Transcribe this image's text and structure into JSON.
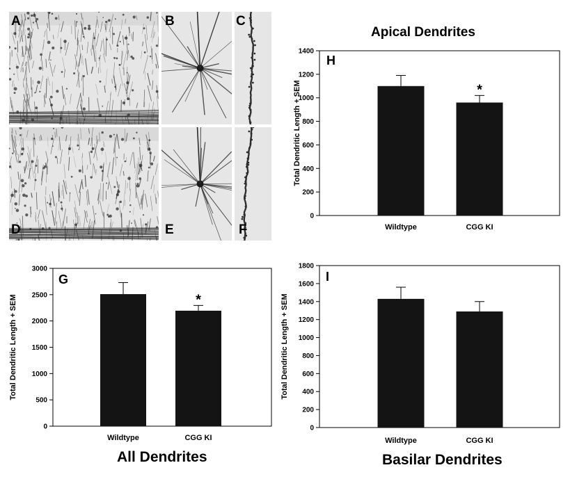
{
  "micrographs": [
    {
      "label": "A"
    },
    {
      "label": "B"
    },
    {
      "label": "C"
    },
    {
      "label": "D"
    },
    {
      "label": "E"
    },
    {
      "label": "F"
    }
  ],
  "colors": {
    "bar": "#141414",
    "axis": "#000000"
  },
  "chart_data": [
    {
      "id": "H",
      "type": "bar",
      "panel_label": "H",
      "title": "Apical Dendrites",
      "ylabel": "Total Dendritic Length + SEM",
      "categories": [
        "Wildtype",
        "CGG KI"
      ],
      "values": [
        1100,
        960
      ],
      "errors": [
        90,
        60
      ],
      "ylim": [
        0,
        1400
      ],
      "yticks": [
        0,
        200,
        400,
        600,
        800,
        1000,
        1200,
        1400
      ],
      "significance": [
        "",
        "*"
      ]
    },
    {
      "id": "G",
      "type": "bar",
      "panel_label": "G",
      "title": "All Dendrites",
      "ylabel": "Total Dendritic Length + SEM",
      "categories": [
        "Wildtype",
        "CGG KI"
      ],
      "values": [
        2510,
        2195
      ],
      "errors": [
        220,
        100
      ],
      "ylim": [
        0,
        3000
      ],
      "yticks": [
        0,
        500,
        1000,
        1500,
        2000,
        2500,
        3000
      ],
      "significance": [
        "",
        "*"
      ]
    },
    {
      "id": "I",
      "type": "bar",
      "panel_label": "I",
      "title": "Basilar Dendrites",
      "ylabel": "Total Dendritic Length + SEM",
      "categories": [
        "Wildtype",
        "CGG KI"
      ],
      "values": [
        1430,
        1290
      ],
      "errors": [
        130,
        110
      ],
      "ylim": [
        0,
        1800
      ],
      "yticks": [
        0,
        200,
        400,
        600,
        800,
        1000,
        1200,
        1400,
        1600,
        1800
      ],
      "significance": [
        "",
        ""
      ]
    }
  ]
}
